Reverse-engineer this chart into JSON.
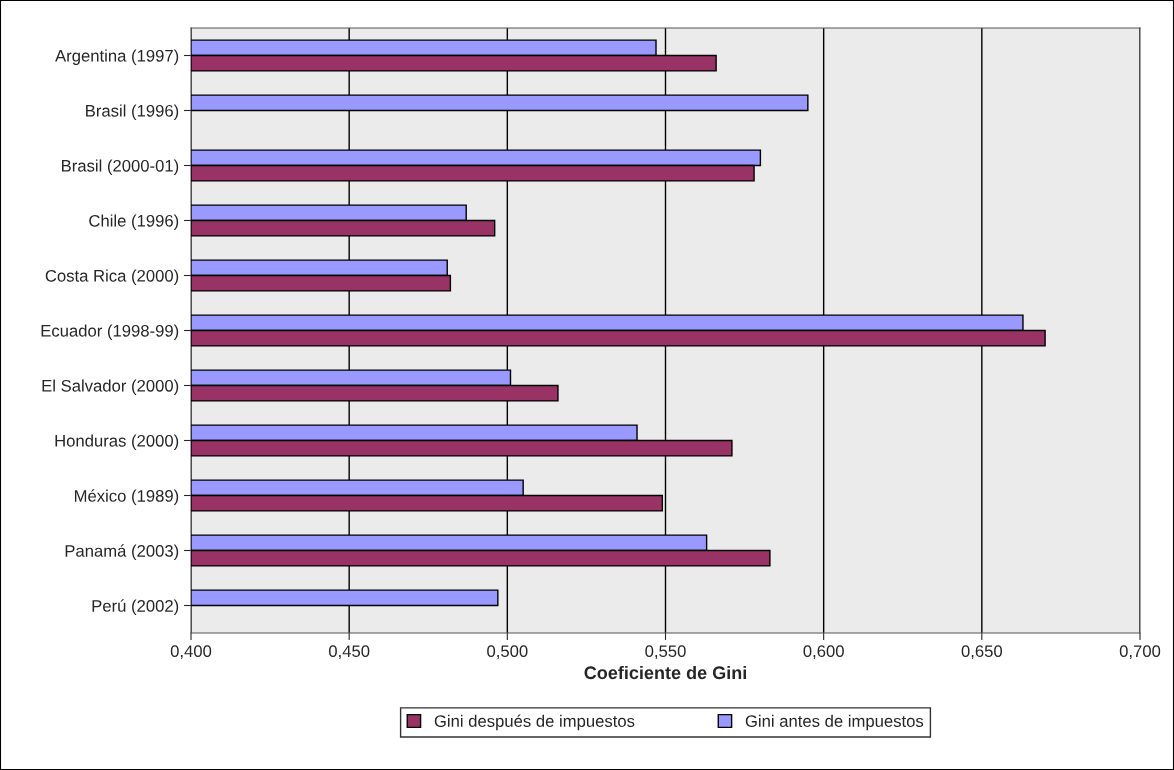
{
  "chart_data": {
    "type": "bar",
    "orientation": "horizontal",
    "xlabel": "Coeficiente de Gini",
    "categories": [
      "Argentina (1997)",
      "Brasil (1996)",
      "Brasil (2000-01)",
      "Chile (1996)",
      "Costa Rica (2000)",
      "Ecuador (1998-99)",
      "El Salvador (2000)",
      "Honduras (2000)",
      "México (1989)",
      "Panamá (2003)",
      "Perú (2002)"
    ],
    "series": [
      {
        "name": "Gini antes de impuestos",
        "color": "#9999ff",
        "values": [
          0.547,
          0.595,
          0.58,
          0.487,
          0.481,
          0.663,
          0.501,
          0.541,
          0.505,
          0.563,
          0.497
        ]
      },
      {
        "name": "Gini después de impuestos",
        "color": "#993366",
        "values": [
          0.566,
          null,
          0.578,
          0.496,
          0.482,
          0.67,
          0.516,
          0.571,
          0.549,
          0.583,
          null
        ]
      }
    ],
    "xlim": [
      0.4,
      0.7
    ],
    "xticks": [
      {
        "value": 0.4,
        "label": "0,400"
      },
      {
        "value": 0.45,
        "label": "0,450"
      },
      {
        "value": 0.5,
        "label": "0,500"
      },
      {
        "value": 0.55,
        "label": "0,550"
      },
      {
        "value": 0.6,
        "label": "0,600"
      },
      {
        "value": 0.65,
        "label": "0,650"
      },
      {
        "value": 0.7,
        "label": "0,700"
      }
    ],
    "grid": "x",
    "legend": "bottom"
  }
}
